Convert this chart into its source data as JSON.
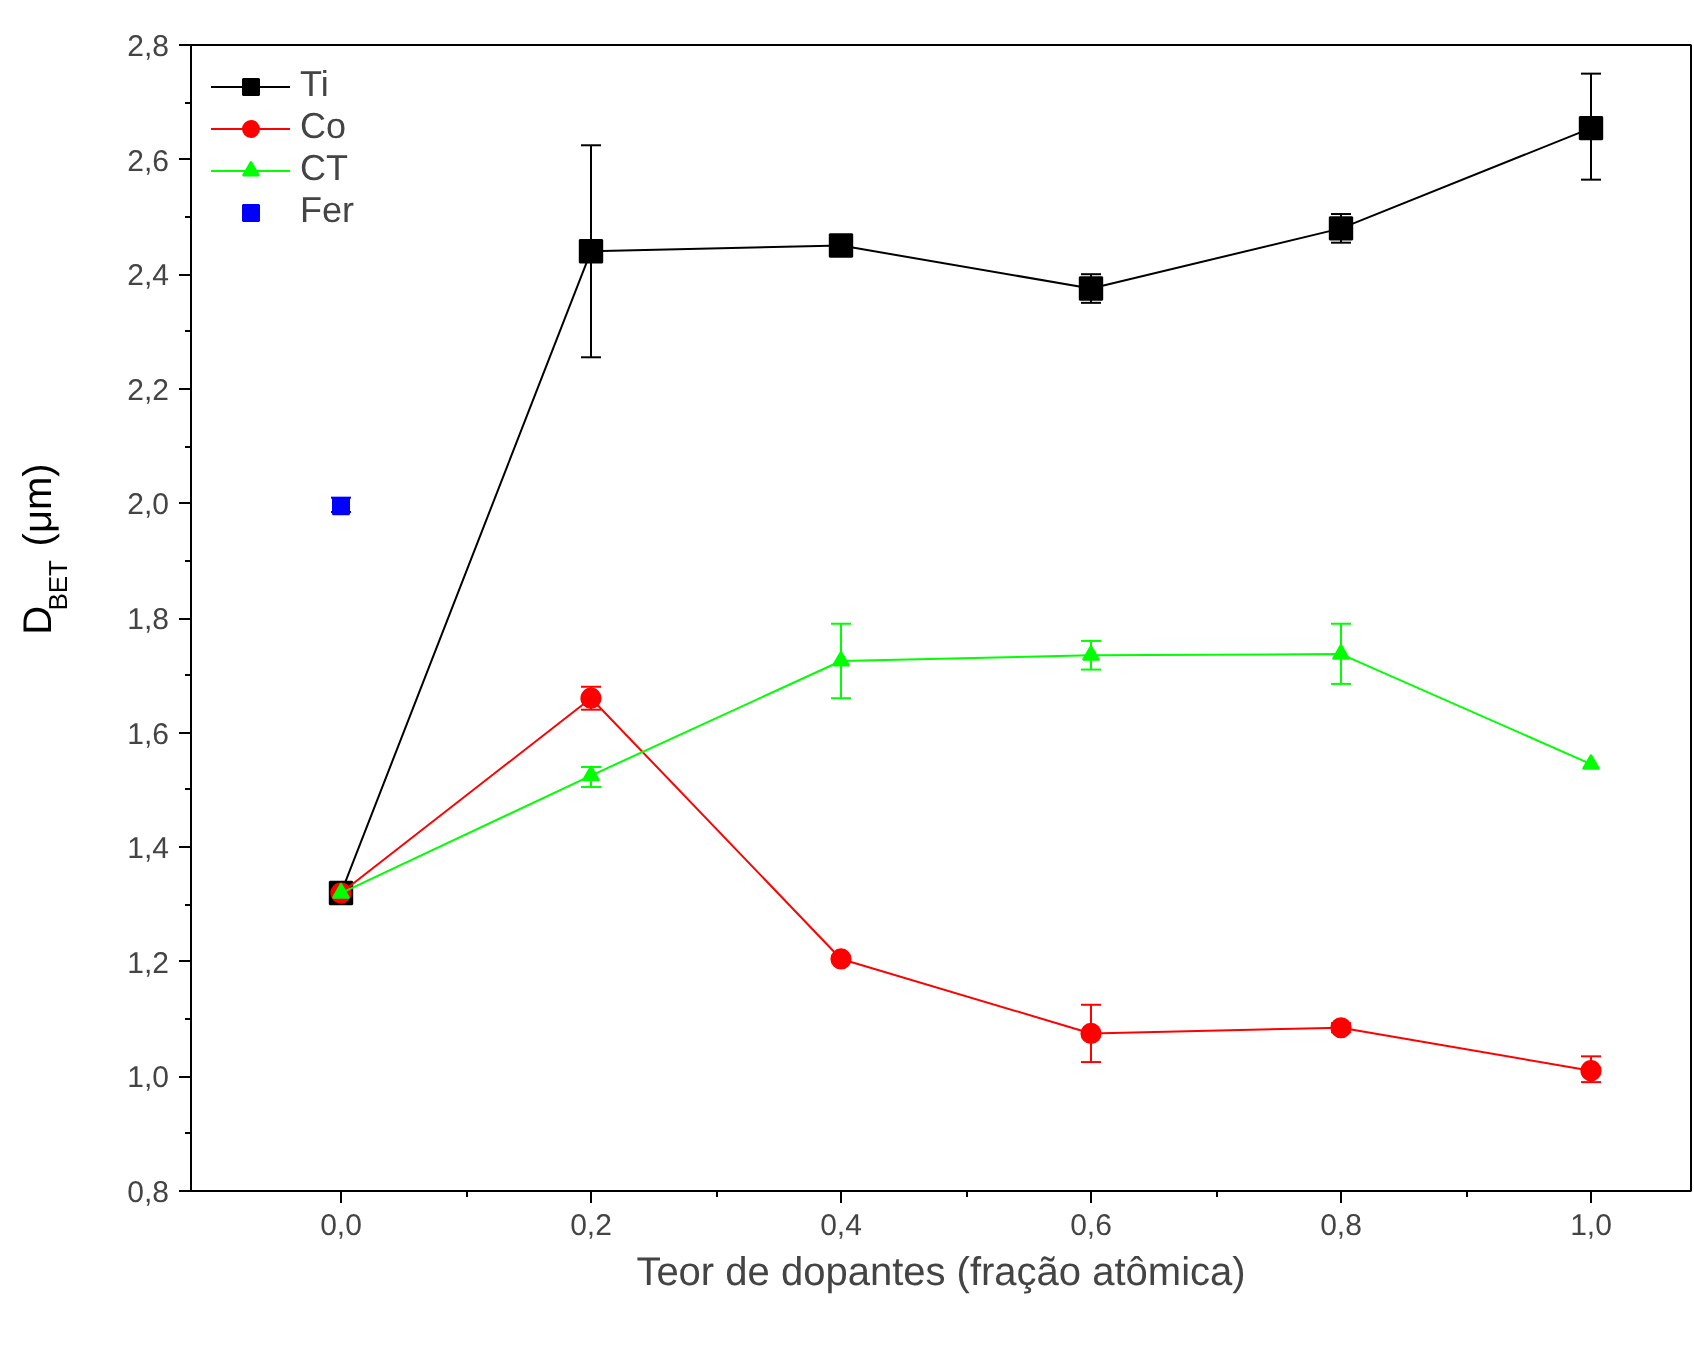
{
  "chart_data": {
    "type": "line",
    "xlabel": "Teor de dopantes (fração atômica)",
    "ylabel": "D$_{BET}$ (μm)",
    "x": [
      0.0,
      0.2,
      0.4,
      0.6,
      0.8,
      1.0
    ],
    "series": [
      {
        "name": "Ti",
        "color": "#000000",
        "marker": "square",
        "values": [
          1.32,
          2.44,
          2.45,
          2.375,
          2.48,
          2.655
        ],
        "errors": [
          null,
          [
            2.255,
            2.625
          ],
          null,
          [
            2.35,
            2.4
          ],
          [
            2.455,
            2.505
          ],
          [
            2.565,
            2.75
          ]
        ]
      },
      {
        "name": "Co",
        "color": "#ff0000",
        "marker": "circle",
        "values": [
          1.32,
          1.66,
          1.205,
          1.075,
          1.085,
          1.01
        ],
        "errors": [
          null,
          [
            1.64,
            1.68
          ],
          null,
          [
            1.025,
            1.125
          ],
          [
            1.077,
            1.093
          ],
          [
            0.99,
            1.035
          ]
        ]
      },
      {
        "name": "CT",
        "color": "#00ff00",
        "marker": "triangle",
        "values": [
          1.32,
          1.525,
          1.725,
          1.735,
          1.737,
          1.545
        ],
        "errors": [
          null,
          [
            1.505,
            1.54
          ],
          [
            1.66,
            1.79
          ],
          [
            1.71,
            1.76
          ],
          [
            1.685,
            1.79
          ],
          null
        ]
      },
      {
        "name": "Fer",
        "type": "scatter",
        "color": "#0000ff",
        "marker": "square",
        "x": [
          0.0
        ],
        "values": [
          1.995
        ],
        "errors": [
          [
            1.985,
            2.01
          ]
        ]
      }
    ],
    "xlim": [
      -0.12,
      1.08
    ],
    "ylim": [
      0.8,
      2.8
    ],
    "xticks": [
      {
        "value": 0.0,
        "label": "0,0"
      },
      {
        "value": 0.2,
        "label": "0,2"
      },
      {
        "value": 0.4,
        "label": "0,4"
      },
      {
        "value": 0.6,
        "label": "0,6"
      },
      {
        "value": 0.8,
        "label": "0,8"
      },
      {
        "value": 1.0,
        "label": "1,0"
      }
    ],
    "yticks": [
      {
        "value": 0.8,
        "label": "0,8"
      },
      {
        "value": 1.0,
        "label": "1,0"
      },
      {
        "value": 1.2,
        "label": "1,2"
      },
      {
        "value": 1.4,
        "label": "1,4"
      },
      {
        "value": 1.6,
        "label": "1,6"
      },
      {
        "value": 1.8,
        "label": "1,8"
      },
      {
        "value": 2.0,
        "label": "2,0"
      },
      {
        "value": 2.2,
        "label": "2,2"
      },
      {
        "value": 2.4,
        "label": "2,4"
      },
      {
        "value": 2.6,
        "label": "2,6"
      },
      {
        "value": 2.8,
        "label": "2,8"
      }
    ],
    "grid": false,
    "legend": "top left",
    "line_style": "solid"
  }
}
